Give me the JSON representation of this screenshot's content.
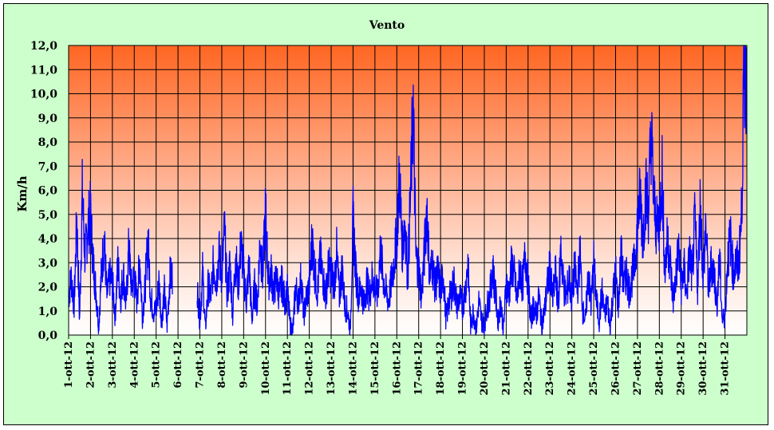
{
  "chart_data": {
    "type": "line",
    "title": "Vento",
    "ylabel": "Km/h",
    "xlabel": "",
    "ylim": [
      0,
      12
    ],
    "y_tick_labels": [
      "0,0",
      "1,0",
      "2,0",
      "3,0",
      "4,0",
      "5,0",
      "6,0",
      "7,0",
      "8,0",
      "9,0",
      "10,0",
      "11,0",
      "12,0"
    ],
    "categories": [
      "1-ott-12",
      "2-ott-12",
      "3-ott-12",
      "4-ott-12",
      "5-ott-12",
      "6-ott-12",
      "7-ott-12",
      "8-ott-12",
      "9-ott-12",
      "10-ott-12",
      "11-ott-12",
      "12-ott-12",
      "13-ott-12",
      "14-ott-12",
      "15-ott-12",
      "16-ott-12",
      "17-ott-12",
      "18-ott-12",
      "19-ott-12",
      "20-ott-12",
      "21-ott-12",
      "22-ott-12",
      "23-ott-12",
      "24-ott-12",
      "25-ott-12",
      "26-ott-12",
      "27-ott-12",
      "28-ott-12",
      "29-ott-12",
      "30-ott-12",
      "31-ott-12"
    ],
    "grid": true,
    "series": [
      {
        "color": "#0000ff",
        "day_profile": [
          [
            1.6,
            2.4,
            1.2,
            4.8,
            0.6,
            5.8,
            3.2,
            4.5
          ],
          [
            5.0,
            3.0,
            1.8,
            0.4,
            2.6,
            4.0,
            1.6,
            2.4
          ],
          [
            2.2,
            0.8,
            3.0,
            1.5,
            2.6,
            1.2,
            3.6,
            2.0
          ],
          [
            2.4,
            1.4,
            3.2,
            0.8,
            2.0,
            4.0,
            1.6,
            1.0
          ],
          [
            1.0,
            2.2,
            0.6,
            1.8,
            0.4,
            2.4,
            null,
            null
          ],
          [
            null,
            null,
            null,
            null,
            null,
            null,
            null,
            2.0
          ],
          [
            0.6,
            2.6,
            0.2,
            2.0,
            1.6,
            3.0,
            2.2,
            3.4
          ],
          [
            2.4,
            4.4,
            1.6,
            3.0,
            0.8,
            3.4,
            2.0,
            3.8
          ],
          [
            2.6,
            1.4,
            3.0,
            0.6,
            2.0,
            1.2,
            4.0,
            2.4
          ],
          [
            5.2,
            2.2,
            2.6,
            1.8,
            2.4,
            1.6,
            2.2,
            1.4
          ],
          [
            1.8,
            0.4,
            0.2,
            2.0,
            1.4,
            2.4,
            0.8,
            1.6
          ],
          [
            2.0,
            4.0,
            2.6,
            1.8,
            3.2,
            2.4,
            1.6,
            2.8
          ],
          [
            2.6,
            2.0,
            3.4,
            1.6,
            2.8,
            1.2,
            1.0,
            0.2
          ],
          [
            4.8,
            2.6,
            1.6,
            2.0,
            1.2,
            2.2,
            1.6,
            2.4
          ],
          [
            2.0,
            1.6,
            3.6,
            2.4,
            1.8,
            1.4,
            2.2,
            3.0
          ],
          [
            4.2,
            6.6,
            3.6,
            4.8,
            2.4,
            5.8,
            9.4,
            3.2
          ],
          [
            2.8,
            1.6,
            3.2,
            5.4,
            2.4,
            3.0,
            2.0,
            2.6
          ],
          [
            1.8,
            2.6,
            0.6,
            1.4,
            1.8,
            2.2,
            1.2,
            1.6
          ],
          [
            1.2,
            1.8,
            3.0,
            0.4,
            1.0,
            0.2,
            1.4,
            0.6
          ],
          [
            0.4,
            1.2,
            1.6,
            2.8,
            1.8,
            0.6,
            1.4,
            0.2
          ],
          [
            2.2,
            1.6,
            3.0,
            2.4,
            1.4,
            2.8,
            2.0,
            3.4
          ],
          [
            2.2,
            0.6,
            1.2,
            0.8,
            1.6,
            0.4,
            1.0,
            2.0
          ],
          [
            2.8,
            1.4,
            2.6,
            1.2,
            3.6,
            2.0,
            1.6,
            2.4
          ],
          [
            1.4,
            2.8,
            1.8,
            3.4,
            1.0,
            0.6,
            2.6,
            1.2
          ],
          [
            3.0,
            1.4,
            0.6,
            1.8,
            0.8,
            1.4,
            0.4,
            1.6
          ],
          [
            2.6,
            1.2,
            3.4,
            2.0,
            2.6,
            1.8,
            2.4,
            3.0
          ],
          [
            4.6,
            5.8,
            4.0,
            6.0,
            5.2,
            8.4,
            5.6,
            4.4
          ],
          [
            4.8,
            6.8,
            2.6,
            4.0,
            3.0,
            1.4,
            2.4,
            3.6
          ],
          [
            2.0,
            2.8,
            1.6,
            3.4,
            2.4,
            4.8,
            2.0,
            5.6
          ],
          [
            2.4,
            4.6,
            1.8,
            3.0,
            2.6,
            1.2,
            3.2,
            0.6
          ],
          [
            0.8,
            3.2,
            4.0,
            2.6,
            3.0,
            2.9,
            4.8,
            11.0
          ]
        ]
      }
    ]
  }
}
